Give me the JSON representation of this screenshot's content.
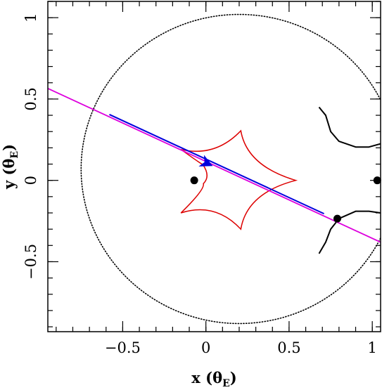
{
  "chart_data": {
    "type": "scatter",
    "title": "",
    "xlabel": "x (θ",
    "xlabel_sub": "E",
    "xlabel_close": ")",
    "ylabel": "y (θ",
    "ylabel_sub": "E",
    "ylabel_close": ")",
    "xlim": [
      -0.95,
      1.05
    ],
    "ylim": [
      -0.93,
      1.1
    ],
    "x_ticks": [
      -0.5,
      0,
      0.5,
      1
    ],
    "x_tick_labels": [
      "−0.5",
      "0",
      "0.5",
      "1"
    ],
    "y_ticks": [
      -0.5,
      0,
      0.5,
      1
    ],
    "y_tick_labels": [
      "−0.5",
      "0",
      "0.5",
      "1"
    ],
    "x_minor_step": 0.1,
    "y_minor_step": 0.1,
    "grid": false,
    "legend": "none",
    "lens_positions": [
      {
        "x": -0.07,
        "y": 0.0
      },
      {
        "x": 1.03,
        "y": 0.0
      },
      {
        "x": 0.79,
        "y": -0.235
      }
    ],
    "binary_axis_line": {
      "x1": -0.95,
      "y1": 0.565,
      "x2": 1.05,
      "y2": -0.38
    },
    "source_trajectory": {
      "x1": -0.58,
      "y1": 0.405,
      "x2": 0.71,
      "y2": -0.205
    },
    "trajectory_arrow": {
      "x": 0.0,
      "y": 0.108
    },
    "caustic_cusps": [
      {
        "x": 0.21,
        "y": 0.305
      },
      {
        "x": -0.15,
        "y": 0.19
      },
      {
        "x": -0.02,
        "y": 0.1
      },
      {
        "x": -0.015,
        "y": -0.02
      },
      {
        "x": -0.15,
        "y": -0.2
      },
      {
        "x": 0.21,
        "y": -0.3
      },
      {
        "x": 0.54,
        "y": 0.0
      }
    ],
    "critical_curve_dotted": {
      "center_x": 0.2,
      "center_y": 0.07,
      "radius": 0.95
    },
    "critical_curve_right_upper": [
      {
        "x": 0.68,
        "y": 0.45
      },
      {
        "x": 0.72,
        "y": 0.4
      },
      {
        "x": 0.75,
        "y": 0.3
      },
      {
        "x": 0.8,
        "y": 0.24
      },
      {
        "x": 0.9,
        "y": 0.205
      },
      {
        "x": 0.98,
        "y": 0.205
      },
      {
        "x": 1.05,
        "y": 0.225
      }
    ],
    "critical_curve_right_lower": [
      {
        "x": 1.05,
        "y": -0.2
      },
      {
        "x": 0.98,
        "y": -0.19
      },
      {
        "x": 0.9,
        "y": -0.19
      },
      {
        "x": 0.8,
        "y": -0.235
      },
      {
        "x": 0.75,
        "y": -0.3
      },
      {
        "x": 0.72,
        "y": -0.38
      },
      {
        "x": 0.68,
        "y": -0.45
      }
    ],
    "colors": {
      "frame": "#000000",
      "caustic": "#dd0000",
      "trajectory": "#0000dd",
      "binary_axis": "#dd00dd",
      "critical_curve": "#000000",
      "lens": "#000000"
    }
  }
}
